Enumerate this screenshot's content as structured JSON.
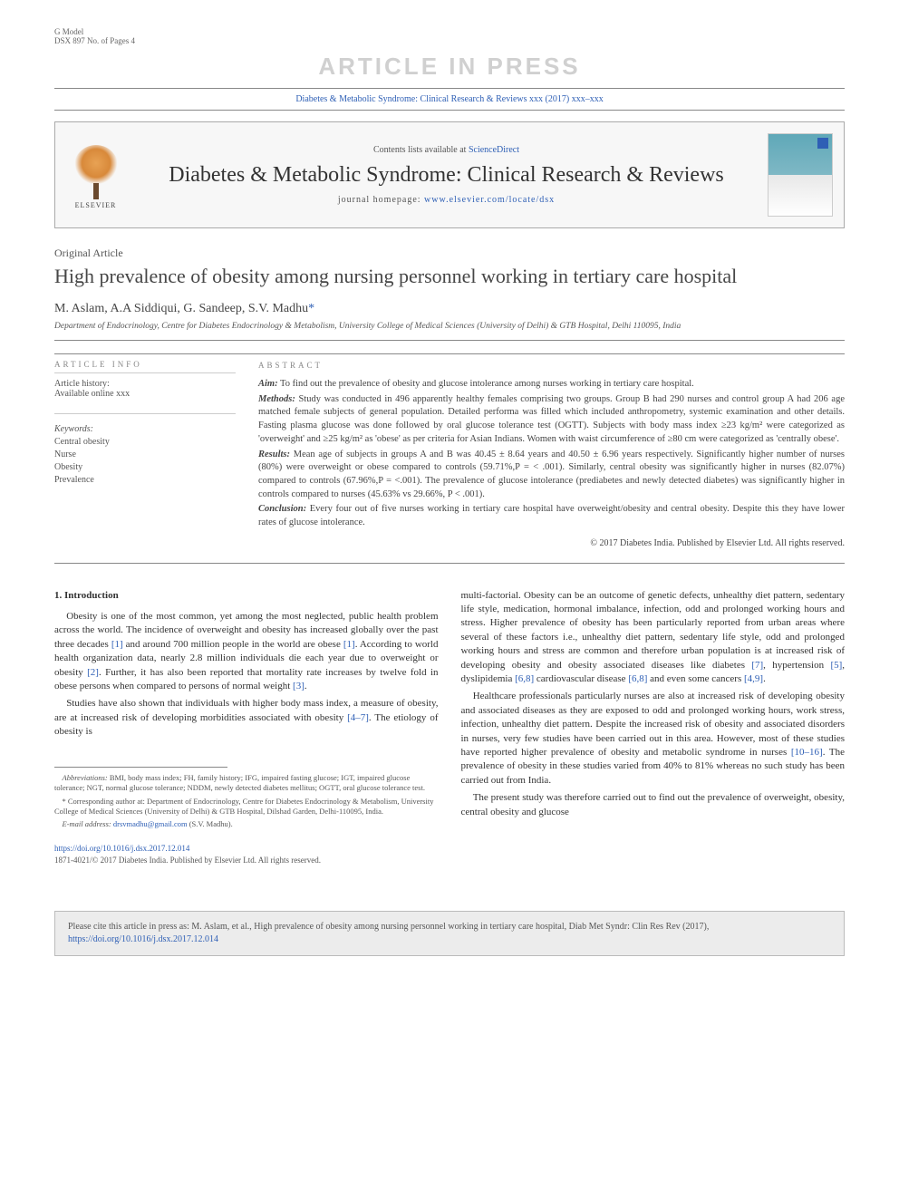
{
  "header": {
    "gmodel": "G Model",
    "dsx": "DSX 897 No. of Pages 4",
    "watermark": "ARTICLE IN PRESS",
    "citation": "Diabetes & Metabolic Syndrome: Clinical Research & Reviews xxx (2017) xxx–xxx"
  },
  "masthead": {
    "contents_prefix": "Contents lists available at ",
    "contents_link": "ScienceDirect",
    "journal": "Diabetes & Metabolic Syndrome: Clinical Research & Reviews",
    "homepage_prefix": "journal homepage: ",
    "homepage_link": "www.elsevier.com/locate/dsx",
    "publisher": "ELSEVIER"
  },
  "article": {
    "type": "Original Article",
    "title": "High prevalence of obesity among nursing personnel working in tertiary care hospital",
    "authors": "M. Aslam, A.A Siddiqui, G. Sandeep, S.V. Madhu",
    "corr_marker": "*",
    "affiliation": "Department of Endocrinology, Centre for Diabetes Endocrinology & Metabolism, University College of Medical Sciences (University of Delhi) & GTB Hospital, Delhi 110095, India"
  },
  "info": {
    "head": "ARTICLE INFO",
    "history_label": "Article history:",
    "history_value": "Available online xxx",
    "keywords_label": "Keywords:",
    "keywords": [
      "Central obesity",
      "Nurse",
      "Obesity",
      "Prevalence"
    ]
  },
  "abstract": {
    "head": "ABSTRACT",
    "aim_label": "Aim:",
    "aim": " To find out the prevalence of obesity and glucose intolerance among nurses working in tertiary care hospital.",
    "methods_label": "Methods:",
    "methods": " Study was conducted in 496 apparently healthy females comprising two groups. Group B had 290 nurses and control group A had 206 age matched female subjects of general population. Detailed performa was filled which included anthropometry, systemic examination and other details. Fasting plasma glucose was done followed by oral glucose tolerance test (OGTT). Subjects with body mass index ≥23 kg/m² were categorized as 'overweight' and ≥25 kg/m² as 'obese' as per criteria for Asian Indians. Women with waist circumference of ≥80 cm were categorized as 'centrally obese'.",
    "results_label": "Results:",
    "results": " Mean age of subjects in groups A and B was 40.45 ± 8.64 years and 40.50 ± 6.96 years respectively. Significantly higher number of nurses (80%) were overweight or obese compared to controls (59.71%,P = < .001). Similarly, central obesity was significantly higher in nurses (82.07%) compared to controls (67.96%,P = <.001). The prevalence of glucose intolerance (prediabetes and newly detected diabetes) was significantly higher in controls compared to nurses (45.63% vs 29.66%, P < .001).",
    "conclusion_label": "Conclusion:",
    "conclusion": " Every four out of five nurses working in tertiary care hospital have overweight/obesity and central obesity. Despite this they have lower rates of glucose intolerance.",
    "copyright": "© 2017 Diabetes India. Published by Elsevier Ltd. All rights reserved."
  },
  "body": {
    "section1_head": "1. Introduction",
    "col1_p1": "Obesity is one of the most common, yet among the most neglected, public health problem across the world. The incidence of overweight and obesity has increased globally over the past three decades [1] and around 700 million people in the world are obese [1]. According to world health organization data, nearly 2.8 million individuals die each year due to overweight or obesity [2]. Further, it has also been reported that mortality rate increases by twelve fold in obese persons when compared to persons of normal weight [3].",
    "col1_p2": "Studies have also shown that individuals with higher body mass index, a measure of obesity, are at increased risk of developing morbidities associated with obesity [4–7]. The etiology of obesity is",
    "col2_p1": "multi-factorial. Obesity can be an outcome of genetic defects, unhealthy diet pattern, sedentary life style, medication, hormonal imbalance, infection, odd and prolonged working hours and stress. Higher prevalence of obesity has been particularly reported from urban areas where several of these factors i.e., unhealthy diet pattern, sedentary life style, odd and prolonged working hours and stress are common and therefore urban population is at increased risk of developing obesity and obesity associated diseases like diabetes [7], hypertension [5], dyslipidemia [6,8] cardiovascular disease [6,8] and even some cancers [4,9].",
    "col2_p2": "Healthcare professionals particularly nurses are also at increased risk of developing obesity and associated diseases as they are exposed to odd and prolonged working hours, work stress, infection, unhealthy diet pattern. Despite the increased risk of obesity and associated disorders in nurses, very few studies have been carried out in this area. However, most of these studies have reported higher prevalence of obesity and metabolic syndrome in nurses [10–16]. The prevalence of obesity in these studies varied from 40% to 81% whereas no such study has been carried out from India.",
    "col2_p3": "The present study was therefore carried out to find out the prevalence of overweight, obesity, central obesity and glucose"
  },
  "footnotes": {
    "abbrev_label": "Abbreviations:",
    "abbrev": " BMI, body mass index; FH, family history; IFG, impaired fasting glucose; IGT, impaired glucose tolerance; NGT, normal glucose tolerance; NDDM, newly detected diabetes mellitus; OGTT, oral glucose tolerance test.",
    "corr": "* Corresponding author at: Department of Endocrinology, Centre for Diabetes Endocrinology & Metabolism, University College of Medical Sciences (University of Delhi) & GTB Hospital, Dilshad Garden, Delhi-110095, India.",
    "email_label": "E-mail address:",
    "email": "drsvmadhu@gmail.com",
    "email_suffix": " (S.V. Madhu)."
  },
  "doi": {
    "link": "https://doi.org/10.1016/j.dsx.2017.12.014",
    "line2": "1871-4021/© 2017 Diabetes India. Published by Elsevier Ltd. All rights reserved."
  },
  "citebox": {
    "text": "Please cite this article in press as: M. Aslam, et al., High prevalence of obesity among nursing personnel working in tertiary care hospital, Diab Met Syndr: Clin Res Rev (2017), ",
    "link": "https://doi.org/10.1016/j.dsx.2017.12.014"
  },
  "colors": {
    "link": "#2e5fb5",
    "text": "#333333",
    "muted": "#888888"
  }
}
